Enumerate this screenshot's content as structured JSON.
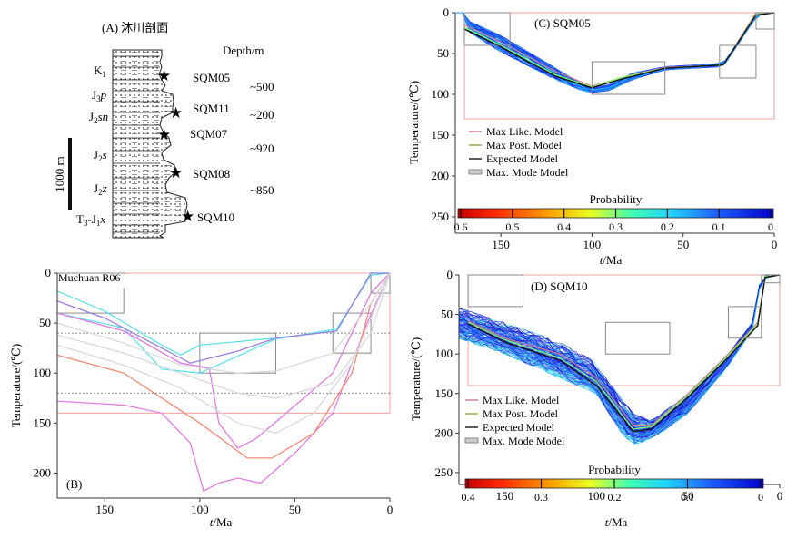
{
  "panelA": {
    "title": "(A) 沐川剖面",
    "depth_header": "Depth/m",
    "scale_label": "1000 m",
    "units": [
      {
        "main": "K",
        "sub": "1",
        "italic": ""
      },
      {
        "main": "J",
        "sub": "3",
        "italic": "p"
      },
      {
        "main": "J",
        "sub": "2",
        "italic": "sn"
      },
      {
        "main": "J",
        "sub": "2",
        "italic": "s"
      },
      {
        "main": "J",
        "sub": "2",
        "italic": "z"
      },
      {
        "main": "T",
        "sub": "3",
        "mid": "-J",
        "sub2": "1",
        "italic": "x"
      }
    ],
    "samples": [
      "SQM05",
      "SQM11",
      "SQM07",
      "SQM08",
      "SQM10"
    ],
    "depths": [
      "~500",
      "~200",
      "~920",
      "~850"
    ]
  },
  "chart_data": [
    {
      "id": "B",
      "type": "line",
      "panel_label": "(B)",
      "title": "Muchuan R06",
      "xlabel_italic": "t",
      "xlabel_rest": "/Ma",
      "ylabel": "Temperature/(℃)",
      "xlim": [
        175,
        0
      ],
      "ylim": [
        0,
        225
      ],
      "xticks": [
        150,
        100,
        50,
        0
      ],
      "yticks": [
        0,
        50,
        100,
        150,
        200
      ],
      "hlines": [
        60,
        120
      ],
      "envelope": {
        "x0": 175,
        "x1": 0,
        "y0": 0,
        "y1": 140
      },
      "boxes": [
        {
          "x0": 175,
          "x1": 140,
          "y0": 0,
          "y1": 40
        },
        {
          "x0": 100,
          "x1": 60,
          "y0": 60,
          "y1": 100
        },
        {
          "x0": 30,
          "x1": 10,
          "y0": 40,
          "y1": 80
        },
        {
          "x0": 10,
          "x1": 0,
          "y0": 0,
          "y1": 20
        }
      ],
      "series": [
        {
          "name": "cyan-1",
          "color": "#5ee0e6",
          "points": [
            [
              175,
              18
            ],
            [
              150,
              38
            ],
            [
              120,
              72
            ],
            [
              110,
              82
            ],
            [
              100,
              72
            ],
            [
              60,
              65
            ],
            [
              28,
              58
            ],
            [
              10,
              0
            ],
            [
              0,
              0
            ]
          ]
        },
        {
          "name": "cyan-2",
          "color": "#5ee0e6",
          "points": [
            [
              175,
              40
            ],
            [
              140,
              55
            ],
            [
              120,
              96
            ],
            [
              100,
              100
            ],
            [
              60,
              66
            ],
            [
              28,
              56
            ],
            [
              10,
              2
            ],
            [
              0,
              0
            ]
          ]
        },
        {
          "name": "purple",
          "color": "#9b7fe0",
          "points": [
            [
              175,
              28
            ],
            [
              150,
              45
            ],
            [
              120,
              75
            ],
            [
              105,
              90
            ],
            [
              80,
              78
            ],
            [
              60,
              65
            ],
            [
              28,
              58
            ],
            [
              10,
              0
            ],
            [
              0,
              0
            ]
          ]
        },
        {
          "name": "magenta-1",
          "color": "#e07be0",
          "points": [
            [
              175,
              40
            ],
            [
              140,
              58
            ],
            [
              110,
              90
            ],
            [
              95,
              95
            ],
            [
              90,
              150
            ],
            [
              80,
              175
            ],
            [
              70,
              165
            ],
            [
              30,
              100
            ],
            [
              10,
              20
            ],
            [
              0,
              0
            ]
          ]
        },
        {
          "name": "magenta-2",
          "color": "#e07be0",
          "points": [
            [
              175,
              128
            ],
            [
              140,
              132
            ],
            [
              120,
              140
            ],
            [
              105,
              170
            ],
            [
              98,
              218
            ],
            [
              90,
              210
            ],
            [
              80,
              205
            ],
            [
              68,
              210
            ],
            [
              50,
              180
            ],
            [
              30,
              140
            ],
            [
              12,
              50
            ],
            [
              0,
              0
            ]
          ]
        },
        {
          "name": "red",
          "color": "#f08a7a",
          "points": [
            [
              175,
              82
            ],
            [
              140,
              100
            ],
            [
              120,
              125
            ],
            [
              100,
              150
            ],
            [
              75,
              185
            ],
            [
              62,
              185
            ],
            [
              40,
              160
            ],
            [
              20,
              100
            ],
            [
              10,
              30
            ],
            [
              0,
              0
            ]
          ]
        },
        {
          "name": "grey-1",
          "color": "#d9d9d9",
          "points": [
            [
              175,
              62
            ],
            [
              140,
              80
            ],
            [
              110,
              100
            ],
            [
              80,
              120
            ],
            [
              60,
              125
            ],
            [
              30,
              110
            ],
            [
              10,
              60
            ],
            [
              0,
              0
            ]
          ]
        },
        {
          "name": "grey-2",
          "color": "#d9d9d9",
          "points": [
            [
              175,
              72
            ],
            [
              140,
              92
            ],
            [
              110,
              115
            ],
            [
              80,
              150
            ],
            [
              60,
              160
            ],
            [
              40,
              140
            ],
            [
              20,
              90
            ],
            [
              0,
              0
            ]
          ]
        },
        {
          "name": "grey-3",
          "color": "#d9d9d9",
          "points": [
            [
              175,
              50
            ],
            [
              140,
              70
            ],
            [
              110,
              92
            ],
            [
              80,
              100
            ],
            [
              60,
              98
            ],
            [
              30,
              80
            ],
            [
              10,
              30
            ],
            [
              0,
              0
            ]
          ]
        }
      ]
    },
    {
      "id": "C",
      "type": "line",
      "panel_label": "(C) SQM05",
      "xlabel_italic": "t",
      "xlabel_rest": "/Ma",
      "ylabel": "Temperature/(℃)",
      "xlim": [
        175,
        0
      ],
      "ylim": [
        0,
        270
      ],
      "xticks": [
        150,
        100,
        50,
        0
      ],
      "yticks": [
        0,
        50,
        100,
        150,
        200,
        250
      ],
      "envelope": {
        "x0": 170,
        "x1": 0,
        "y0": 0,
        "y1": 130
      },
      "boxes": [
        {
          "x0": 170,
          "x1": 145,
          "y0": 0,
          "y1": 40
        },
        {
          "x0": 100,
          "x1": 60,
          "y0": 60,
          "y1": 100
        },
        {
          "x0": 30,
          "x1": 10,
          "y0": 40,
          "y1": 80
        },
        {
          "x0": 10,
          "x1": 0,
          "y0": 0,
          "y1": 20
        }
      ],
      "paths": {
        "envelope_low": [
          [
            170,
            8
          ],
          [
            150,
            28
          ],
          [
            120,
            68
          ],
          [
            105,
            88
          ],
          [
            100,
            92
          ],
          [
            90,
            88
          ],
          [
            78,
            74
          ],
          [
            60,
            66
          ],
          [
            28,
            62
          ],
          [
            12,
            10
          ],
          [
            8,
            0
          ],
          [
            0,
            0
          ]
        ],
        "envelope_high": [
          [
            170,
            20
          ],
          [
            150,
            48
          ],
          [
            120,
            82
          ],
          [
            105,
            96
          ],
          [
            100,
            98
          ],
          [
            90,
            95
          ],
          [
            78,
            82
          ],
          [
            60,
            70
          ],
          [
            28,
            66
          ],
          [
            12,
            12
          ],
          [
            8,
            2
          ],
          [
            0,
            0
          ]
        ],
        "max_like": [
          [
            170,
            15
          ],
          [
            150,
            36
          ],
          [
            120,
            72
          ],
          [
            100,
            90
          ],
          [
            80,
            77
          ],
          [
            60,
            67
          ],
          [
            28,
            64
          ],
          [
            10,
            0
          ],
          [
            0,
            0
          ]
        ],
        "max_post": [
          [
            170,
            18
          ],
          [
            150,
            40
          ],
          [
            120,
            76
          ],
          [
            100,
            91
          ],
          [
            85,
            80
          ],
          [
            60,
            68
          ],
          [
            28,
            64
          ],
          [
            10,
            2
          ],
          [
            0,
            0
          ]
        ],
        "expected": [
          [
            170,
            20
          ],
          [
            150,
            42
          ],
          [
            120,
            78
          ],
          [
            100,
            92
          ],
          [
            85,
            82
          ],
          [
            60,
            68
          ],
          [
            28,
            64
          ],
          [
            10,
            3
          ],
          [
            0,
            0
          ]
        ]
      },
      "legend": [
        "Max Like. Model",
        "Max Post. Model",
        "Expected Model",
        "Max. Mode Model"
      ],
      "colorbar": {
        "label": "Probability",
        "ticks": [
          "0.6",
          "0.5",
          "0.4",
          "0.3",
          "0.2",
          "0.1",
          "0"
        ]
      }
    },
    {
      "id": "D",
      "type": "line",
      "panel_label": "(D) SQM10",
      "xlabel_italic": "t",
      "xlabel_rest": "/Ma",
      "ylabel": "Temperature/(℃)",
      "xlim": [
        175,
        0
      ],
      "ylim": [
        0,
        265
      ],
      "xticks": [
        150,
        100,
        50,
        0
      ],
      "yticks": [
        0,
        50,
        100,
        150,
        200,
        250
      ],
      "envelope": {
        "x0": 170,
        "x1": 0,
        "y0": 0,
        "y1": 140
      },
      "boxes": [
        {
          "x0": 170,
          "x1": 140,
          "y0": 0,
          "y1": 40
        },
        {
          "x0": 95,
          "x1": 60,
          "y0": 60,
          "y1": 100
        },
        {
          "x0": 28,
          "x1": 10,
          "y0": 40,
          "y1": 80
        },
        {
          "x0": 10,
          "x1": 0,
          "y0": 0,
          "y1": 10
        }
      ],
      "paths": {
        "envelope_low": [
          [
            175,
            42
          ],
          [
            150,
            60
          ],
          [
            120,
            85
          ],
          [
            102,
            108
          ],
          [
            90,
            145
          ],
          [
            80,
            175
          ],
          [
            70,
            185
          ],
          [
            50,
            150
          ],
          [
            28,
            100
          ],
          [
            15,
            60
          ],
          [
            10,
            0
          ],
          [
            0,
            0
          ]
        ],
        "envelope_high": [
          [
            175,
            80
          ],
          [
            150,
            100
          ],
          [
            120,
            130
          ],
          [
            100,
            150
          ],
          [
            85,
            205
          ],
          [
            78,
            215
          ],
          [
            65,
            200
          ],
          [
            50,
            175
          ],
          [
            28,
            115
          ],
          [
            15,
            70
          ],
          [
            10,
            5
          ],
          [
            0,
            0
          ]
        ],
        "max_like": [
          [
            170,
            58
          ],
          [
            150,
            80
          ],
          [
            120,
            100
          ],
          [
            100,
            130
          ],
          [
            80,
            190
          ],
          [
            70,
            190
          ],
          [
            50,
            150
          ],
          [
            28,
            100
          ],
          [
            12,
            60
          ],
          [
            8,
            0
          ],
          [
            0,
            0
          ]
        ],
        "max_post": [
          [
            170,
            60
          ],
          [
            150,
            82
          ],
          [
            120,
            105
          ],
          [
            100,
            135
          ],
          [
            80,
            195
          ],
          [
            70,
            192
          ],
          [
            50,
            152
          ],
          [
            28,
            102
          ],
          [
            12,
            62
          ],
          [
            8,
            2
          ],
          [
            0,
            0
          ]
        ],
        "expected": [
          [
            170,
            62
          ],
          [
            150,
            85
          ],
          [
            120,
            108
          ],
          [
            100,
            140
          ],
          [
            80,
            198
          ],
          [
            70,
            195
          ],
          [
            50,
            155
          ],
          [
            28,
            104
          ],
          [
            12,
            64
          ],
          [
            8,
            3
          ],
          [
            0,
            0
          ]
        ]
      },
      "legend": [
        "Max Like. Model",
        "Max Post. Model",
        "Expected Model",
        "Max. Mode Model"
      ],
      "colorbar": {
        "label": "Probability",
        "ticks": [
          "0.4",
          "0.3",
          "0.2",
          "0.1",
          "0"
        ]
      }
    }
  ]
}
